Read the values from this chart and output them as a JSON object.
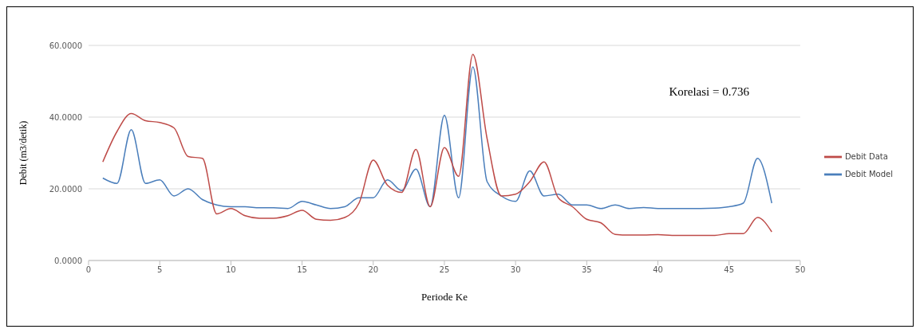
{
  "chart_data": {
    "type": "line",
    "xlabel": "Periode Ke",
    "ylabel": "Debit (m3/detik)",
    "annotations": [
      "Korelasi = 0.736"
    ],
    "x": [
      1,
      2,
      3,
      4,
      5,
      6,
      7,
      8,
      9,
      10,
      11,
      12,
      13,
      14,
      15,
      16,
      17,
      18,
      19,
      20,
      21,
      22,
      23,
      24,
      25,
      26,
      27,
      28,
      29,
      30,
      31,
      32,
      33,
      34,
      35,
      36,
      37,
      38,
      39,
      40,
      41,
      42,
      43,
      44,
      45,
      46,
      47,
      48
    ],
    "series": [
      {
        "name": "Debit Model",
        "color": "#4a7ebb",
        "values": [
          23,
          21.5,
          36.5,
          21.5,
          22.5,
          18,
          20,
          17,
          15.5,
          15,
          15,
          14.7,
          14.7,
          14.5,
          16.5,
          15.5,
          14.5,
          15,
          17.5,
          17.5,
          22.5,
          19.5,
          25.5,
          15,
          40.5,
          17.5,
          54,
          22,
          18,
          16.5,
          25,
          18,
          18.5,
          15.5,
          15.5,
          14.5,
          15.5,
          14.5,
          14.8,
          14.5,
          14.5,
          14.5,
          14.5,
          14.6,
          15,
          16,
          28.5,
          16
        ]
      },
      {
        "name": "Debit Data",
        "color": "#be4b48",
        "values": [
          27.5,
          36,
          41,
          39,
          38.5,
          37,
          29,
          28.5,
          13,
          14.5,
          12.5,
          11.8,
          11.8,
          12.5,
          14,
          11.5,
          11.2,
          12,
          16,
          28,
          21,
          19,
          31,
          15,
          31.5,
          23.5,
          57.5,
          34,
          18,
          18.5,
          22,
          27.5,
          17.5,
          15,
          11.5,
          10.5,
          7.3,
          7.1,
          7.1,
          7.2,
          7,
          7,
          7,
          7,
          7.5,
          7.5,
          12,
          8
        ]
      }
    ],
    "xlim": [
      0,
      50
    ],
    "xticks": [
      0,
      5,
      10,
      15,
      20,
      25,
      30,
      35,
      40,
      45,
      50
    ],
    "ylim": [
      0,
      60
    ],
    "yticks": [
      {
        "value": 0,
        "label": "0.0000"
      },
      {
        "value": 20,
        "label": "20.0000"
      },
      {
        "value": 40,
        "label": "40.0000"
      },
      {
        "value": 60,
        "label": "60.0000"
      }
    ],
    "grid": "y",
    "legend": "right",
    "marker": "none",
    "line_style": "solid"
  }
}
